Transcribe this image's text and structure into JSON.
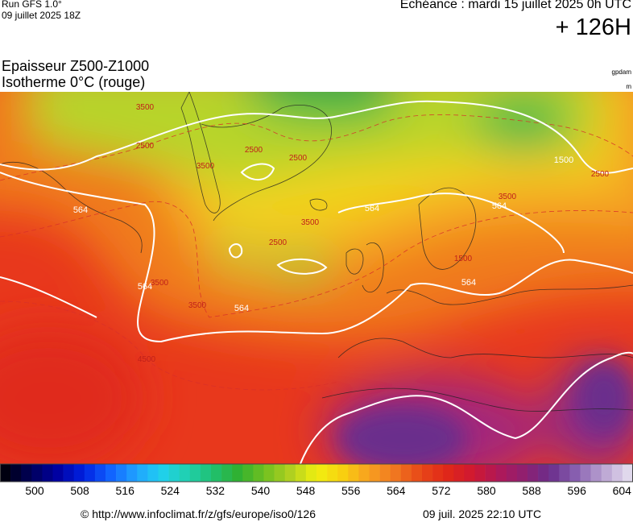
{
  "header": {
    "run": "Run GFS 1.0°",
    "run_date": "09 juillet 2025 18Z",
    "valid": "Echéance : mardi 15 juillet 2025 0h UTC",
    "lead": "+ 126H"
  },
  "titles": {
    "line1": "Epaisseur Z500-Z1000",
    "line2": "Isotherme 0°C (rouge)",
    "unit1": "gpdam",
    "unit2": "m"
  },
  "map_labels": [
    "3500",
    "2500",
    "3500",
    "2500",
    "564",
    "564",
    "3500",
    "2500",
    "564",
    "3500",
    "2500",
    "564",
    "1500",
    "4500",
    "3500",
    "564",
    "2500",
    "1500",
    "3500",
    "564"
  ],
  "legend": {
    "labels": [
      "500",
      "508",
      "516",
      "524",
      "532",
      "540",
      "548",
      "556",
      "564",
      "572",
      "580",
      "588",
      "596",
      "604"
    ]
  },
  "footer": {
    "source": "© http://www.infoclimat.fr/z/gfs/europe/iso0/126",
    "timestamp": "09 juil. 2025 22:10 UTC"
  }
}
